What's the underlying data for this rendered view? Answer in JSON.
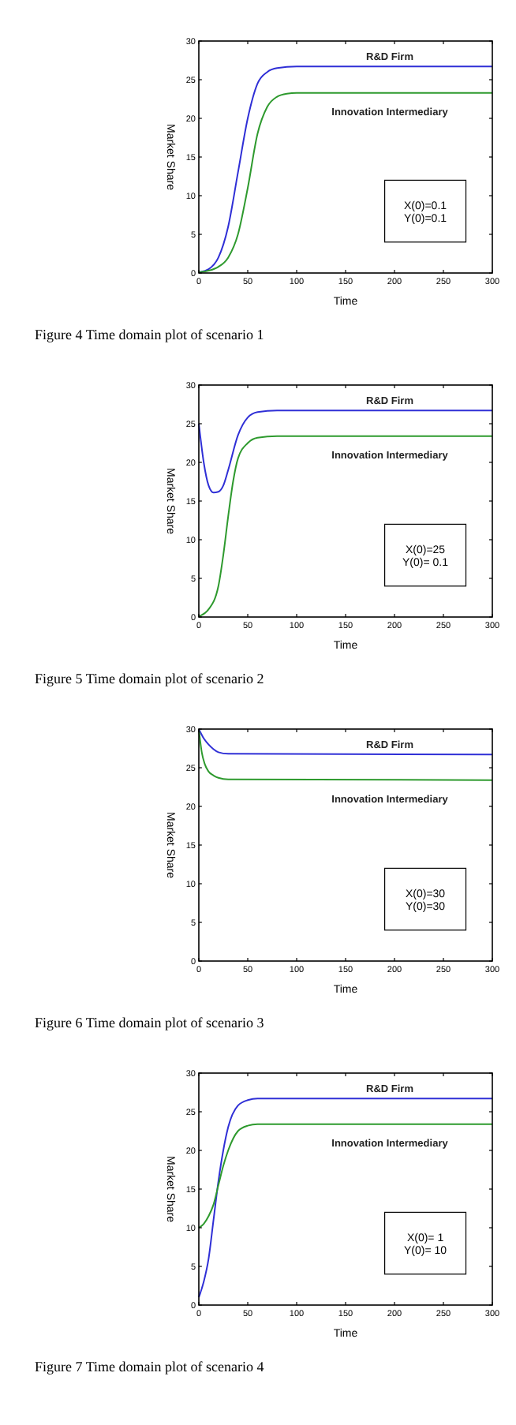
{
  "chart_data": [
    {
      "type": "line",
      "title": "Figure 4 Time domain plot of scenario 1",
      "xlabel": "Time",
      "ylabel": "Market Share",
      "xlim": [
        0,
        300
      ],
      "ylim": [
        0,
        30
      ],
      "xticks": [
        0,
        50,
        100,
        150,
        200,
        250,
        300
      ],
      "yticks": [
        0,
        5,
        10,
        15,
        20,
        25,
        30
      ],
      "grid": false,
      "annotations": [
        "X(0)=0.1",
        "Y(0)=0.1"
      ],
      "series": [
        {
          "name": "R&D Firm",
          "color": "#2f2fd6",
          "x": [
            0,
            10,
            20,
            30,
            40,
            50,
            60,
            70,
            80,
            100,
            300
          ],
          "values": [
            0.1,
            0.5,
            2,
            6,
            13,
            20,
            24.5,
            26,
            26.5,
            26.7,
            26.7
          ]
        },
        {
          "name": "Innovation Intermediary",
          "color": "#2e9a2e",
          "x": [
            0,
            10,
            20,
            30,
            40,
            50,
            60,
            70,
            80,
            90,
            100,
            300
          ],
          "values": [
            0.1,
            0.3,
            0.8,
            2,
            5,
            11,
            18,
            21.5,
            22.8,
            23.2,
            23.3,
            23.3
          ]
        }
      ]
    },
    {
      "type": "line",
      "title": "Figure 5 Time domain plot of scenario 2",
      "xlabel": "Time",
      "ylabel": "Market Share",
      "xlim": [
        0,
        300
      ],
      "ylim": [
        0,
        30
      ],
      "xticks": [
        0,
        50,
        100,
        150,
        200,
        250,
        300
      ],
      "yticks": [
        0,
        5,
        10,
        15,
        20,
        25,
        30
      ],
      "grid": false,
      "annotations": [
        "X(0)=25",
        "Y(0)= 0.1"
      ],
      "series": [
        {
          "name": "R&D Firm",
          "color": "#2f2fd6",
          "x": [
            0,
            5,
            10,
            15,
            20,
            25,
            30,
            40,
            50,
            60,
            80,
            300
          ],
          "values": [
            25,
            20,
            17,
            16.1,
            16.2,
            17,
            19,
            23.5,
            25.8,
            26.5,
            26.7,
            26.7
          ]
        },
        {
          "name": "Innovation Intermediary",
          "color": "#2e9a2e",
          "x": [
            0,
            10,
            20,
            25,
            30,
            35,
            40,
            50,
            60,
            80,
            300
          ],
          "values": [
            0.1,
            1,
            4,
            8,
            13,
            17.5,
            20.5,
            22.5,
            23.2,
            23.4,
            23.4
          ]
        }
      ]
    },
    {
      "type": "line",
      "title": "Figure 6 Time domain plot of scenario 3",
      "xlabel": "Time",
      "ylabel": "Market Share",
      "xlim": [
        0,
        300
      ],
      "ylim": [
        0,
        30
      ],
      "xticks": [
        0,
        50,
        100,
        150,
        200,
        250,
        300
      ],
      "yticks": [
        0,
        5,
        10,
        15,
        20,
        25,
        30
      ],
      "grid": false,
      "annotations": [
        "X(0)=30",
        "Y(0)=30"
      ],
      "series": [
        {
          "name": "R&D Firm",
          "color": "#2f2fd6",
          "x": [
            0,
            5,
            10,
            15,
            20,
            30,
            300
          ],
          "values": [
            30,
            28.8,
            28,
            27.4,
            27,
            26.8,
            26.7
          ]
        },
        {
          "name": "Innovation Intermediary",
          "color": "#2e9a2e",
          "x": [
            0,
            3,
            6,
            10,
            15,
            20,
            30,
            300
          ],
          "values": [
            30,
            27,
            25.5,
            24.5,
            24,
            23.7,
            23.5,
            23.4
          ]
        }
      ]
    },
    {
      "type": "line",
      "title": "Figure 7 Time domain plot of scenario 4",
      "xlabel": "Time",
      "ylabel": "Market Share",
      "xlim": [
        0,
        300
      ],
      "ylim": [
        0,
        30
      ],
      "xticks": [
        0,
        50,
        100,
        150,
        200,
        250,
        300
      ],
      "yticks": [
        0,
        5,
        10,
        15,
        20,
        25,
        30
      ],
      "grid": false,
      "annotations": [
        "X(0)= 1",
        "Y(0)= 10"
      ],
      "series": [
        {
          "name": "R&D Firm",
          "color": "#2f2fd6",
          "x": [
            0,
            5,
            10,
            15,
            20,
            25,
            30,
            40,
            50,
            60,
            300
          ],
          "values": [
            1,
            3,
            6,
            11,
            16,
            20,
            23,
            25.8,
            26.5,
            26.7,
            26.7
          ]
        },
        {
          "name": "Innovation Intermediary",
          "color": "#2e9a2e",
          "x": [
            0,
            5,
            10,
            15,
            20,
            25,
            30,
            40,
            50,
            60,
            300
          ],
          "values": [
            10,
            10.5,
            11.5,
            13,
            15.5,
            18,
            20,
            22.5,
            23.2,
            23.4,
            23.4
          ]
        }
      ]
    }
  ]
}
